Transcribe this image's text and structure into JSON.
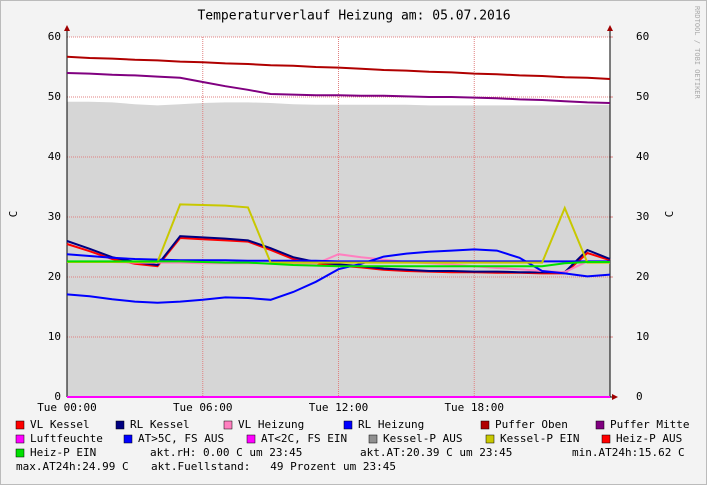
{
  "chart_data": {
    "type": "line",
    "title": "Temperaturverlauf Heizung am: 05.07.2016",
    "ylabel": "C",
    "y2label": "C",
    "watermark": "RRDTOOL / TOBI OETIKER",
    "x": [
      0,
      1,
      2,
      3,
      4,
      5,
      6,
      7,
      8,
      9,
      10,
      11,
      12,
      13,
      14,
      15,
      16,
      17,
      18,
      19,
      20,
      21,
      22,
      23,
      24
    ],
    "xlim": [
      0,
      24
    ],
    "xticks": [
      {
        "value": 0,
        "label": "Tue 00:00"
      },
      {
        "value": 6,
        "label": "Tue 06:00"
      },
      {
        "value": 12,
        "label": "Tue 12:00"
      },
      {
        "value": 18,
        "label": "Tue 18:00"
      }
    ],
    "ylim": [
      0,
      60
    ],
    "yticks": [
      0,
      10,
      20,
      30,
      40,
      50,
      60
    ],
    "y2lim": [
      0,
      60
    ],
    "y2ticks": [
      0,
      10,
      20,
      30,
      40,
      50,
      60
    ],
    "grid": true,
    "series": [
      {
        "name": "VL Kessel",
        "color": "#ff0000",
        "values": [
          25.5,
          24.3,
          23.0,
          22.2,
          21.8,
          26.5,
          26.3,
          26.1,
          25.9,
          24.5,
          23.0,
          22.3,
          21.9,
          21.6,
          21.2,
          21.0,
          20.9,
          20.8,
          20.8,
          20.7,
          20.7,
          20.6,
          20.6,
          24.0,
          22.8
        ]
      },
      {
        "name": "RL Kessel",
        "color": "#000080",
        "values": [
          26.0,
          24.7,
          23.3,
          22.5,
          22.0,
          26.8,
          26.6,
          26.4,
          26.1,
          24.8,
          23.3,
          22.5,
          22.1,
          21.8,
          21.4,
          21.2,
          21.0,
          21.0,
          20.9,
          20.9,
          20.8,
          20.8,
          20.8,
          24.5,
          23.0
        ]
      },
      {
        "name": "VL Heizung",
        "color": "#ff80c0",
        "values": [
          22.5,
          22.5,
          22.5,
          22.4,
          22.4,
          22.4,
          22.3,
          22.3,
          22.3,
          22.3,
          22.3,
          22.2,
          23.8,
          23.3,
          22.9,
          22.5,
          22.3,
          22.1,
          21.8,
          21.5,
          21.3,
          21.0,
          20.8,
          22.6,
          22.5
        ]
      },
      {
        "name": "RL Heizung",
        "color": "#0000ff",
        "values": [
          23.8,
          23.5,
          23.2,
          23.0,
          22.9,
          22.8,
          22.8,
          22.8,
          22.7,
          22.7,
          22.7,
          22.7,
          22.6,
          22.6,
          22.6,
          22.6,
          22.6,
          22.6,
          22.6,
          22.6,
          22.6,
          22.6,
          22.6,
          22.6,
          22.6
        ]
      },
      {
        "name": "Puffer Oben",
        "color": "#b00000",
        "values": [
          56.7,
          56.5,
          56.4,
          56.2,
          56.1,
          55.9,
          55.8,
          55.6,
          55.5,
          55.3,
          55.2,
          55.0,
          54.9,
          54.7,
          54.5,
          54.4,
          54.2,
          54.1,
          53.9,
          53.8,
          53.6,
          53.5,
          53.3,
          53.2,
          53.0
        ]
      },
      {
        "name": "Puffer Mitte",
        "color": "#800080",
        "values": [
          54.0,
          53.9,
          53.7,
          53.6,
          53.4,
          53.2,
          52.5,
          51.8,
          51.2,
          50.5,
          50.4,
          50.3,
          50.3,
          50.2,
          50.2,
          50.1,
          50.0,
          50.0,
          49.9,
          49.8,
          49.6,
          49.5,
          49.3,
          49.1,
          49.0
        ]
      },
      {
        "name": "Luftfeuchte",
        "color": "#ff00ff",
        "values": [
          0,
          0,
          0,
          0,
          0,
          0,
          0,
          0,
          0,
          0,
          0,
          0,
          0,
          0,
          0,
          0,
          0,
          0,
          0,
          0,
          0,
          0,
          0,
          0,
          0
        ]
      },
      {
        "name": "AT>5C, FS AUS",
        "color": "#0000ff",
        "values": [
          17.1,
          16.8,
          16.3,
          15.9,
          15.7,
          15.9,
          16.2,
          16.6,
          16.5,
          16.2,
          17.5,
          19.2,
          21.3,
          22.2,
          23.4,
          23.9,
          24.2,
          24.4,
          24.6,
          24.4,
          23.2,
          21.0,
          20.6,
          20.1,
          20.4
        ]
      },
      {
        "name": "AT<2C, FS EIN",
        "color": "#ff00ff",
        "values": [
          null,
          null,
          null,
          null,
          null,
          null,
          null,
          null,
          null,
          null,
          null,
          null,
          null,
          null,
          null,
          null,
          null,
          null,
          null,
          null,
          null,
          null,
          null,
          null,
          null
        ]
      },
      {
        "name": "Kessel-P AUS",
        "color": "#909090",
        "fill": "#d6d6d6",
        "style": "area",
        "values": [
          49.2,
          49.2,
          49.1,
          48.8,
          48.6,
          48.8,
          49.0,
          49.1,
          49.1,
          49.0,
          48.8,
          48.7,
          48.7,
          48.7,
          48.7,
          48.7,
          48.6,
          48.6,
          48.6,
          48.6,
          48.6,
          48.6,
          48.6,
          48.7,
          48.7
        ]
      },
      {
        "name": "Kessel-P EIN",
        "color": "#c8c800",
        "values": [
          22.5,
          22.5,
          22.5,
          22.5,
          22.5,
          32.1,
          32.0,
          31.9,
          31.6,
          22.4,
          22.4,
          22.4,
          22.4,
          22.4,
          22.4,
          22.4,
          22.4,
          22.4,
          22.4,
          22.4,
          22.4,
          22.4,
          31.5,
          22.4,
          22.4
        ]
      },
      {
        "name": "Heiz-P AUS",
        "color": "#ff0000",
        "values": [
          null,
          null,
          null,
          null,
          null,
          null,
          null,
          null,
          null,
          null,
          null,
          null,
          null,
          null,
          null,
          null,
          null,
          null,
          null,
          null,
          null,
          null,
          null,
          null,
          null
        ]
      },
      {
        "name": "Heiz-P EIN",
        "color": "#00e000",
        "values": [
          22.6,
          22.6,
          22.6,
          22.6,
          22.6,
          22.6,
          22.5,
          22.4,
          22.4,
          22.2,
          22.0,
          21.9,
          21.8,
          21.8,
          21.8,
          21.8,
          21.8,
          21.8,
          21.8,
          21.8,
          21.8,
          21.8,
          22.3,
          22.5,
          22.5
        ]
      }
    ],
    "annotations": [
      "akt.rH: 0.00 C um 23:45",
      "akt.AT:20.39 C um 23:45",
      "min.AT24h:15.62 C",
      "max.AT24h:24.99 C",
      "akt.Fuellstand:   49 Prozent um 23:45"
    ]
  }
}
